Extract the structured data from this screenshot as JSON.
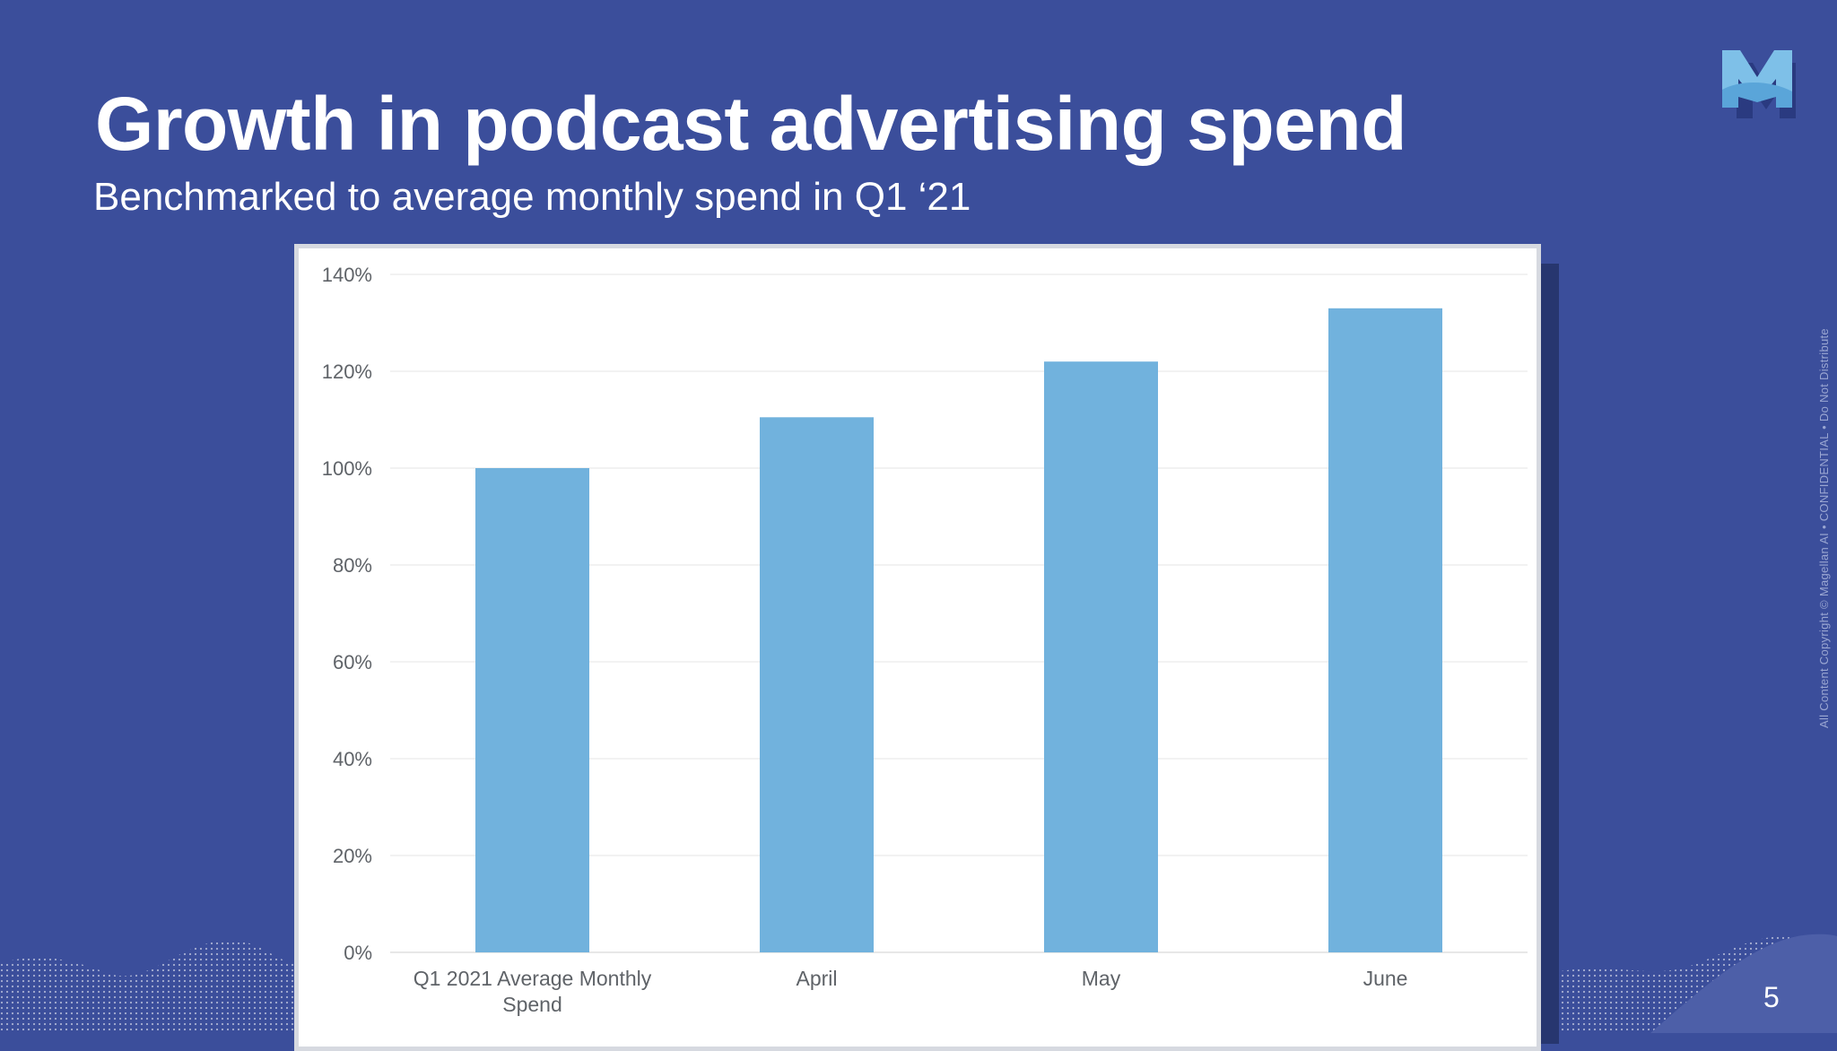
{
  "slide": {
    "title": "Growth in podcast advertising spend",
    "subtitle": "Benchmarked to average monthly spend in Q1 ‘21",
    "side_note": "All Content Copyright © Magellan AI  •  CONFIDENTIAL  •  Do Not Distribute",
    "page_number": "5",
    "logo_icon": "magellan-m-logo-icon"
  },
  "colors": {
    "background": "#3b4e9b",
    "bar": "#71b2dd",
    "card": "#ffffff",
    "gridline": "#e6e6e6"
  },
  "chart_data": {
    "type": "bar",
    "categories": [
      "Q1 2021 Average Monthly Spend",
      "April",
      "May",
      "June"
    ],
    "category_lines": [
      [
        "Q1 2021 Average Monthly",
        "Spend"
      ],
      [
        "April"
      ],
      [
        "May"
      ],
      [
        "June"
      ]
    ],
    "values": [
      100,
      110.5,
      122,
      133
    ],
    "y_ticks": [
      "0%",
      "20%",
      "40%",
      "60%",
      "80%",
      "100%",
      "120%",
      "140%"
    ],
    "ylim": [
      0,
      140
    ],
    "ytick_step": 20,
    "grid": true,
    "legend": "none"
  }
}
